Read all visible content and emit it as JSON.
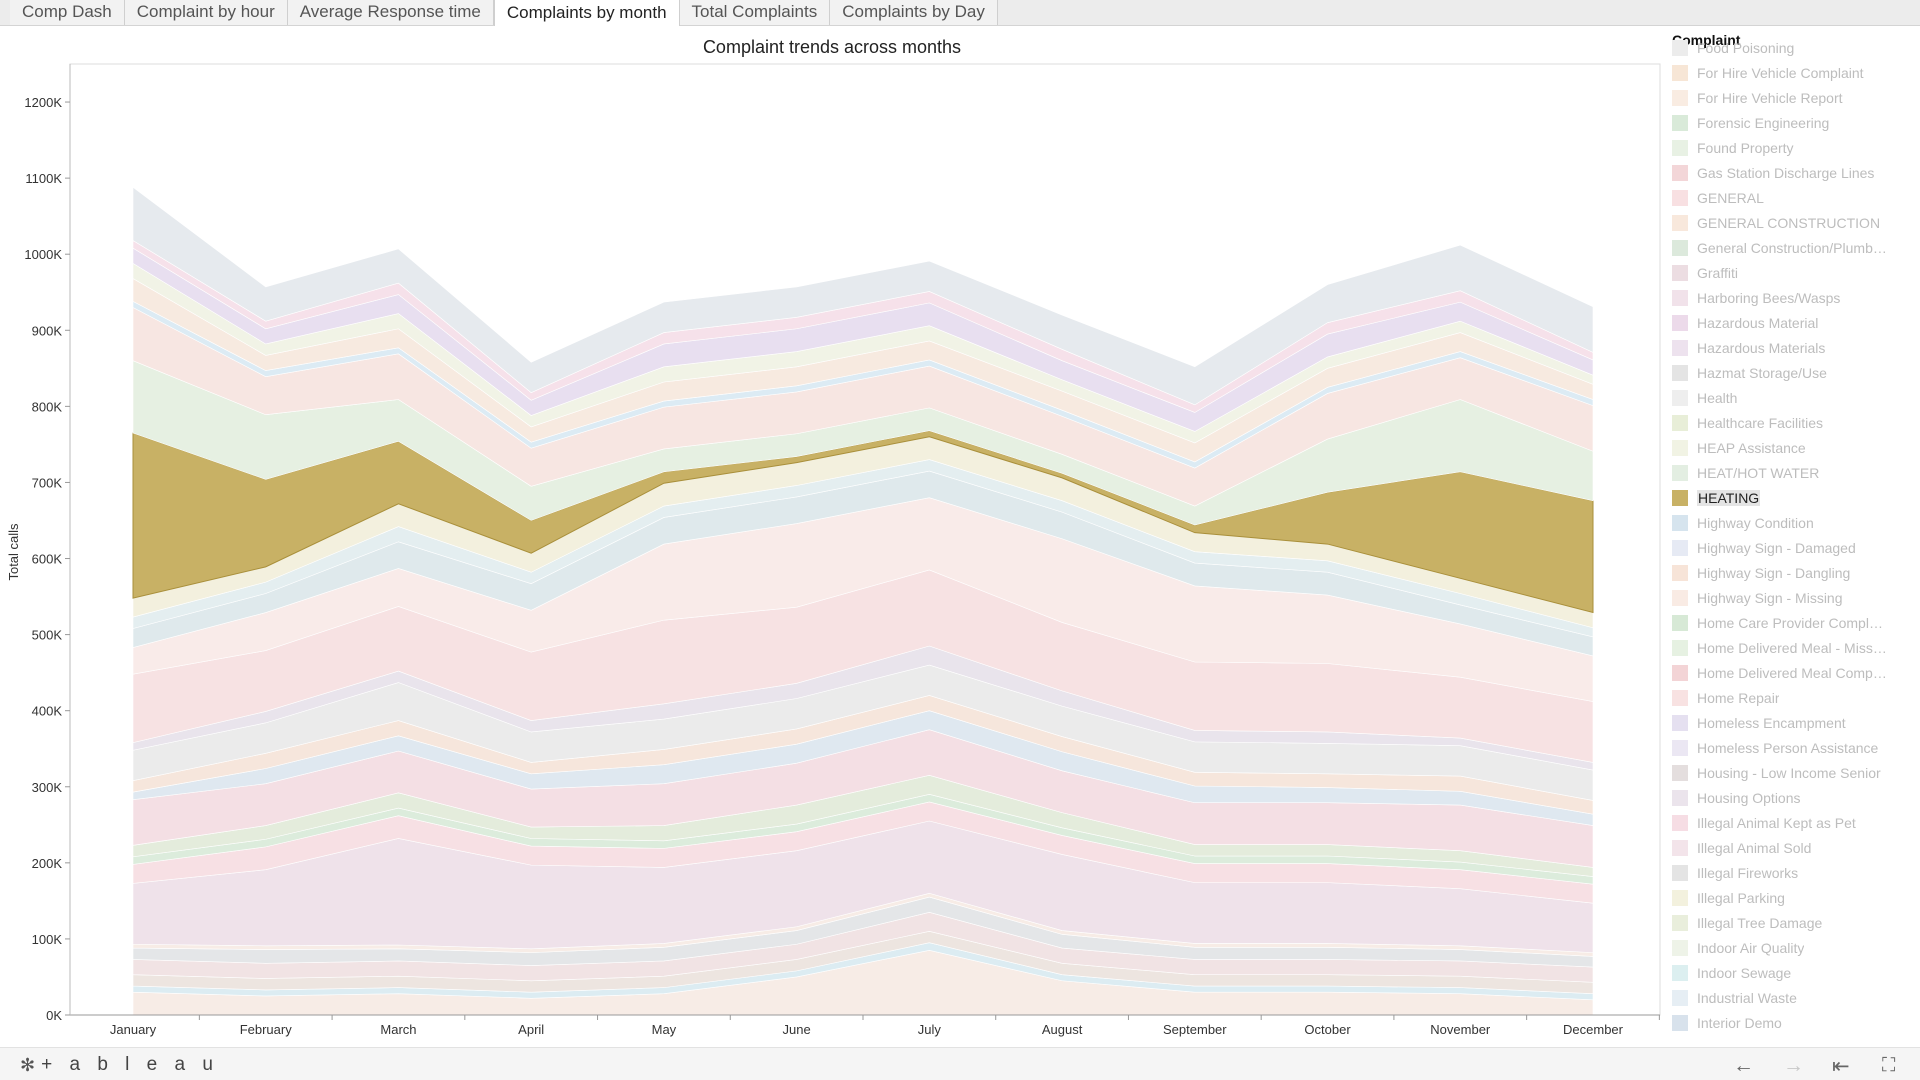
{
  "tabs": [
    {
      "label": "Comp Dash",
      "active": false
    },
    {
      "label": "Complaint by hour",
      "active": false
    },
    {
      "label": "Average Response time",
      "active": false
    },
    {
      "label": "Complaints by month",
      "active": true
    },
    {
      "label": "Total Complaints",
      "active": false
    },
    {
      "label": "Complaints by Day",
      "active": false
    }
  ],
  "legend": {
    "title": "Complaint",
    "partial_top": "Food Poisoning",
    "highlighted": "HEATING",
    "items": [
      {
        "label": "For Hire Vehicle Complaint",
        "color": "#f7e6d6"
      },
      {
        "label": "For Hire Vehicle Report",
        "color": "#f9ece2"
      },
      {
        "label": "Forensic Engineering",
        "color": "#d9ead9"
      },
      {
        "label": "Found Property",
        "color": "#e8f1e4"
      },
      {
        "label": "Gas Station Discharge Lines",
        "color": "#f3d6d8"
      },
      {
        "label": "GENERAL",
        "color": "#f8e0e2"
      },
      {
        "label": "GENERAL CONSTRUCTION",
        "color": "#f8e8dc"
      },
      {
        "label": "General Construction/Plumbing",
        "color": "#dce9dc"
      },
      {
        "label": "Graffiti",
        "color": "#ecdde2"
      },
      {
        "label": "Harboring Bees/Wasps",
        "color": "#f1e2ea"
      },
      {
        "label": "Hazardous Material",
        "color": "#ecdaea"
      },
      {
        "label": "Hazardous Materials",
        "color": "#ede2ee"
      },
      {
        "label": "Hazmat Storage/Use",
        "color": "#e4e4e4"
      },
      {
        "label": "Health",
        "color": "#eeeeee"
      },
      {
        "label": "Healthcare Facilities",
        "color": "#e8eed8"
      },
      {
        "label": "HEAP Assistance",
        "color": "#f1f3e4"
      },
      {
        "label": "HEAT/HOT WATER",
        "color": "#e3eee2"
      },
      {
        "label": "HEATING",
        "color": "#c8b165"
      },
      {
        "label": "Highway Condition",
        "color": "#d6e4ee"
      },
      {
        "label": "Highway Sign - Damaged",
        "color": "#e6eaf4"
      },
      {
        "label": "Highway Sign - Dangling",
        "color": "#f7e4d8"
      },
      {
        "label": "Highway Sign - Missing",
        "color": "#f9ebe4"
      },
      {
        "label": "Home Care Provider Complaint",
        "color": "#d7e9d6"
      },
      {
        "label": "Home Delivered Meal - Missed Delivery",
        "color": "#e6f1e2"
      },
      {
        "label": "Home Delivered Meal Complaint",
        "color": "#f3d4d6"
      },
      {
        "label": "Home Repair",
        "color": "#f8e2e2"
      },
      {
        "label": "Homeless Encampment",
        "color": "#e5e0f0"
      },
      {
        "label": "Homeless Person Assistance",
        "color": "#ebe7f3"
      },
      {
        "label": "Housing - Low Income Senior",
        "color": "#e4dede"
      },
      {
        "label": "Housing Options",
        "color": "#ebe4ec"
      },
      {
        "label": "Illegal Animal Kept as Pet",
        "color": "#f6dde4"
      },
      {
        "label": "Illegal Animal Sold",
        "color": "#f3e4ea"
      },
      {
        "label": "Illegal Fireworks",
        "color": "#e4e4e4"
      },
      {
        "label": "Illegal Parking",
        "color": "#f3f1de"
      },
      {
        "label": "Illegal Tree Damage",
        "color": "#e9eedc"
      },
      {
        "label": "Indoor Air Quality",
        "color": "#eef3e8"
      },
      {
        "label": "Indoor Sewage",
        "color": "#dceff0"
      },
      {
        "label": "Industrial Waste",
        "color": "#e6eef4"
      },
      {
        "label": "Interior Demo",
        "color": "#d8e2ec"
      }
    ]
  },
  "chart_data": {
    "type": "area",
    "title": "Complaint trends across months",
    "xlabel": "",
    "ylabel": "Total calls",
    "categories": [
      "January",
      "February",
      "March",
      "April",
      "May",
      "June",
      "July",
      "August",
      "September",
      "October",
      "November",
      "December"
    ],
    "yticks": [
      "0K",
      "100K",
      "200K",
      "300K",
      "400K",
      "500K",
      "600K",
      "700K",
      "800K",
      "900K",
      "1000K",
      "1100K",
      "1200K"
    ],
    "ylim": [
      0,
      1250000
    ],
    "grid": false,
    "stacked": true,
    "highlighted_series": "HEATING",
    "series": [
      {
        "name": "",
        "color": "#f7ece6",
        "values": [
          30000,
          25000,
          28000,
          22000,
          28000,
          50000,
          85000,
          45000,
          30000,
          30000,
          28000,
          20000
        ]
      },
      {
        "name": "",
        "color": "#dcecf2",
        "values": [
          8000,
          8000,
          8000,
          8000,
          8000,
          8000,
          10000,
          8000,
          8000,
          8000,
          8000,
          8000
        ]
      },
      {
        "name": "",
        "color": "#ede5e0",
        "values": [
          15000,
          15000,
          15000,
          15000,
          15000,
          15000,
          15000,
          15000,
          15000,
          15000,
          15000,
          15000
        ]
      },
      {
        "name": "",
        "color": "#f1e3e4",
        "values": [
          20000,
          20000,
          20000,
          20000,
          20000,
          20000,
          25000,
          20000,
          20000,
          20000,
          20000,
          20000
        ]
      },
      {
        "name": "",
        "color": "#e4e6e8",
        "values": [
          15000,
          18000,
          16000,
          17000,
          18000,
          18000,
          20000,
          18000,
          16000,
          16000,
          15000,
          14000
        ]
      },
      {
        "name": "",
        "color": "#f7ece6",
        "values": [
          5000,
          5000,
          5000,
          5000,
          5000,
          5000,
          5000,
          5000,
          5000,
          5000,
          5000,
          5000
        ]
      },
      {
        "name": "",
        "color": "#efe2ea",
        "values": [
          80000,
          100000,
          140000,
          110000,
          100000,
          100000,
          95000,
          100000,
          80000,
          80000,
          75000,
          65000
        ]
      },
      {
        "name": "",
        "color": "#f7e0e4",
        "values": [
          25000,
          30000,
          30000,
          25000,
          25000,
          25000,
          25000,
          25000,
          25000,
          25000,
          25000,
          25000
        ]
      },
      {
        "name": "",
        "color": "#dcecdc",
        "values": [
          10000,
          10000,
          10000,
          10000,
          10000,
          10000,
          10000,
          10000,
          10000,
          10000,
          10000,
          10000
        ]
      },
      {
        "name": "",
        "color": "#e4ecdc",
        "values": [
          15000,
          18000,
          20000,
          15000,
          20000,
          25000,
          25000,
          20000,
          15000,
          15000,
          15000,
          12000
        ]
      },
      {
        "name": "",
        "color": "#f4dfe4",
        "values": [
          60000,
          55000,
          55000,
          50000,
          55000,
          55000,
          60000,
          55000,
          55000,
          55000,
          60000,
          55000
        ]
      },
      {
        "name": "",
        "color": "#dfe8f0",
        "values": [
          10000,
          20000,
          20000,
          20000,
          25000,
          25000,
          25000,
          25000,
          22000,
          20000,
          18000,
          15000
        ]
      },
      {
        "name": "",
        "color": "#f6e6dc",
        "values": [
          15000,
          20000,
          20000,
          15000,
          20000,
          20000,
          20000,
          20000,
          18000,
          18000,
          20000,
          18000
        ]
      },
      {
        "name": "",
        "color": "#ebebeb",
        "values": [
          40000,
          40000,
          50000,
          40000,
          40000,
          40000,
          40000,
          40000,
          40000,
          40000,
          40000,
          40000
        ]
      },
      {
        "name": "",
        "color": "#e9e4ec",
        "values": [
          10000,
          15000,
          15000,
          15000,
          20000,
          20000,
          25000,
          20000,
          15000,
          15000,
          10000,
          10000
        ]
      },
      {
        "name": "",
        "color": "#f7e2e3",
        "values": [
          90000,
          80000,
          85000,
          90000,
          110000,
          100000,
          100000,
          90000,
          90000,
          90000,
          80000,
          80000
        ]
      },
      {
        "name": "",
        "color": "#f9ebe9",
        "values": [
          35000,
          50000,
          50000,
          55000,
          100000,
          110000,
          95000,
          110000,
          100000,
          90000,
          70000,
          60000
        ]
      },
      {
        "name": "",
        "color": "#dfe9ec",
        "values": [
          25000,
          25000,
          35000,
          35000,
          35000,
          35000,
          35000,
          35000,
          30000,
          30000,
          25000,
          25000
        ]
      },
      {
        "name": "",
        "color": "#e4eef0",
        "values": [
          15000,
          15000,
          20000,
          15000,
          15000,
          15000,
          15000,
          15000,
          15000,
          15000,
          15000,
          12000
        ]
      },
      {
        "name": "",
        "color": "#f3f0de",
        "values": [
          25000,
          20000,
          30000,
          25000,
          30000,
          30000,
          30000,
          30000,
          25000,
          22000,
          20000,
          20000
        ]
      },
      {
        "name": "",
        "color": "#c8b165",
        "values": [
          217000,
          115000,
          82000,
          43000,
          15000,
          8000,
          8000,
          6000,
          10000,
          68000,
          140000,
          147000
        ]
      },
      {
        "name": "",
        "color": "#e6f0e2",
        "values": [
          95000,
          85000,
          55000,
          45000,
          30000,
          30000,
          30000,
          25000,
          25000,
          70000,
          95000,
          65000
        ]
      },
      {
        "name": "",
        "color": "#f7e6e2",
        "values": [
          70000,
          50000,
          60000,
          50000,
          55000,
          55000,
          55000,
          50000,
          50000,
          60000,
          55000,
          60000
        ]
      },
      {
        "name": "",
        "color": "#dcebf4",
        "values": [
          8000,
          8000,
          8000,
          8000,
          8000,
          8000,
          8000,
          8000,
          8000,
          8000,
          8000,
          8000
        ]
      },
      {
        "name": "",
        "color": "#f7eae0",
        "values": [
          30000,
          20000,
          25000,
          20000,
          25000,
          25000,
          25000,
          25000,
          25000,
          25000,
          25000,
          20000
        ]
      },
      {
        "name": "",
        "color": "#f1f3e6",
        "values": [
          20000,
          15000,
          20000,
          15000,
          20000,
          20000,
          20000,
          15000,
          15000,
          15000,
          15000,
          12000
        ]
      },
      {
        "name": "",
        "color": "#e8dff0",
        "values": [
          20000,
          20000,
          25000,
          20000,
          30000,
          30000,
          30000,
          25000,
          25000,
          30000,
          25000,
          20000
        ]
      },
      {
        "name": "",
        "color": "#f6e1ea",
        "values": [
          10000,
          10000,
          15000,
          10000,
          15000,
          15000,
          15000,
          15000,
          10000,
          15000,
          15000,
          10000
        ]
      },
      {
        "name": "",
        "color": "#e6eaee",
        "values": [
          70000,
          45000,
          45000,
          40000,
          40000,
          40000,
          40000,
          45000,
          50000,
          50000,
          60000,
          60000
        ]
      }
    ]
  },
  "footer": {
    "brand": "+ a b l e a u",
    "brand_icon": "tableau-logo-icon",
    "nav_icons": [
      "undo-icon",
      "redo-icon",
      "revert-icon",
      "fullscreen-icon"
    ]
  }
}
